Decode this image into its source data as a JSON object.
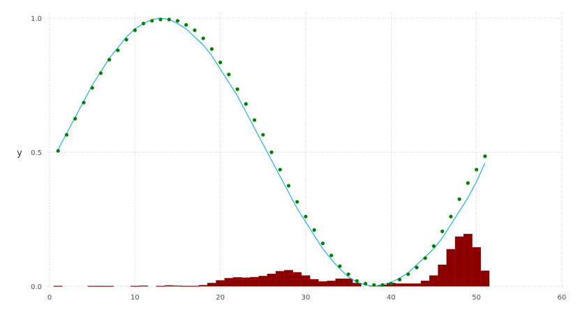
{
  "chart_data": {
    "type": "line",
    "title": "",
    "xlabel": "",
    "ylabel": "y",
    "xlim": [
      0,
      60
    ],
    "ylim": [
      0,
      1
    ],
    "grid": true,
    "legend": "none",
    "x_ticks": [
      "0",
      "10",
      "20",
      "30",
      "40",
      "50",
      "60"
    ],
    "y_ticks": [
      "0.0",
      "0.5",
      "1.0"
    ],
    "colors": {
      "line": "#1bb1e6",
      "points": "#008000",
      "bars": "#8b0000",
      "grid": "#d9d9d9"
    },
    "line_series": {
      "x": [
        1,
        2,
        3,
        4,
        5,
        6,
        7,
        8,
        9,
        10,
        11,
        12,
        13,
        14,
        15,
        16,
        17,
        18,
        19,
        20,
        21,
        22,
        23,
        24,
        25,
        26,
        27,
        28,
        29,
        30,
        31,
        32,
        33,
        34,
        35,
        36,
        37,
        38,
        39,
        40,
        41,
        42,
        43,
        44,
        45,
        46,
        47,
        48,
        49,
        50,
        51
      ],
      "y": [
        0.51,
        0.57,
        0.63,
        0.69,
        0.75,
        0.8,
        0.85,
        0.89,
        0.93,
        0.96,
        0.98,
        0.995,
        1.0,
        0.995,
        0.98,
        0.96,
        0.93,
        0.9,
        0.86,
        0.81,
        0.76,
        0.71,
        0.65,
        0.59,
        0.53,
        0.47,
        0.41,
        0.35,
        0.29,
        0.24,
        0.19,
        0.14,
        0.1,
        0.065,
        0.035,
        0.015,
        0.005,
        0.0,
        0.005,
        0.015,
        0.03,
        0.05,
        0.08,
        0.11,
        0.14,
        0.18,
        0.23,
        0.28,
        0.33,
        0.39,
        0.46
      ]
    },
    "point_series": {
      "x": [
        1,
        2,
        3,
        4,
        5,
        6,
        7,
        8,
        9,
        10,
        11,
        12,
        13,
        14,
        15,
        16,
        17,
        18,
        19,
        20,
        21,
        22,
        23,
        24,
        25,
        26,
        27,
        28,
        29,
        30,
        31,
        32,
        33,
        34,
        35,
        36,
        37,
        38,
        39,
        40,
        41,
        42,
        43,
        44,
        45,
        46,
        47,
        48,
        49,
        50,
        51
      ],
      "y": [
        0.505,
        0.565,
        0.625,
        0.685,
        0.74,
        0.795,
        0.845,
        0.88,
        0.92,
        0.955,
        0.98,
        0.99,
        0.995,
        0.995,
        0.99,
        0.975,
        0.955,
        0.925,
        0.885,
        0.835,
        0.79,
        0.735,
        0.68,
        0.62,
        0.565,
        0.5,
        0.435,
        0.375,
        0.315,
        0.26,
        0.21,
        0.16,
        0.115,
        0.075,
        0.045,
        0.02,
        0.01,
        0.005,
        0.005,
        0.01,
        0.025,
        0.045,
        0.07,
        0.105,
        0.15,
        0.205,
        0.26,
        0.325,
        0.385,
        0.435,
        0.485
      ]
    },
    "bar_series": {
      "x": [
        1,
        2,
        3,
        4,
        5,
        6,
        7,
        8,
        9,
        10,
        11,
        12,
        13,
        14,
        15,
        16,
        17,
        18,
        19,
        20,
        21,
        22,
        23,
        24,
        25,
        26,
        27,
        28,
        29,
        30,
        31,
        32,
        33,
        34,
        35,
        36,
        37,
        38,
        39,
        40,
        41,
        42,
        43,
        44,
        45,
        46,
        47,
        48,
        49,
        50,
        51
      ],
      "values": [
        0.001,
        0.0,
        0.0,
        0.0,
        0.001,
        0.001,
        0.001,
        0.0,
        0.0,
        0.001,
        0.002,
        0.0,
        0.001,
        0.003,
        0.002,
        0.001,
        0.001,
        0.004,
        0.012,
        0.022,
        0.03,
        0.033,
        0.032,
        0.034,
        0.038,
        0.046,
        0.056,
        0.06,
        0.052,
        0.04,
        0.026,
        0.018,
        0.02,
        0.028,
        0.028,
        0.012,
        0.0,
        0.002,
        0.005,
        0.012,
        0.01,
        0.01,
        0.01,
        0.02,
        0.04,
        0.08,
        0.138,
        0.185,
        0.195,
        0.145,
        0.058
      ]
    }
  }
}
